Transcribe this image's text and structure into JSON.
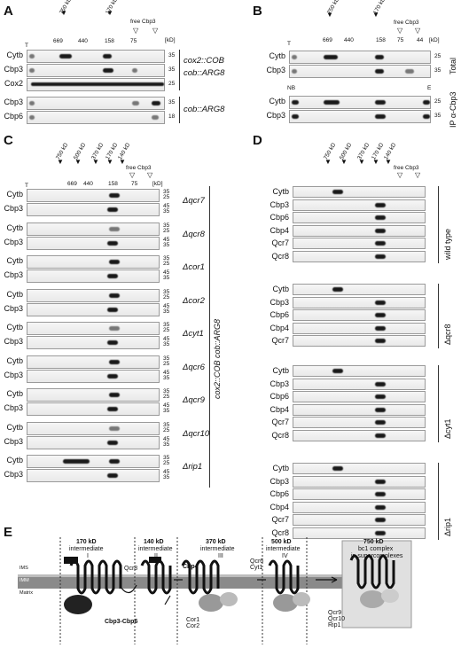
{
  "panels": {
    "A": {
      "label": "A",
      "markers": [
        "750 kD",
        "170 kD",
        "free Cbp3"
      ],
      "size_marks": [
        "669",
        "440",
        "158",
        "75"
      ],
      "unit": "[kD]",
      "t_label": "T",
      "rows": [
        {
          "name": "Cytb",
          "kd": "35"
        },
        {
          "name": "Cbp3",
          "kd": "35"
        },
        {
          "name": "Cox2",
          "kd": "25"
        },
        {
          "name": "Cbp3",
          "kd": "35"
        },
        {
          "name": "Cbp6",
          "kd": "18"
        }
      ],
      "genotype1": "cox2::COB",
      "genotype1b": "cob::ARG8",
      "genotype2": "cob::ARG8"
    },
    "B": {
      "label": "B",
      "markers": [
        "750 kD",
        "170 kD",
        "free Cbp3"
      ],
      "size_marks": [
        "669",
        "440",
        "158",
        "75",
        "44"
      ],
      "unit": "[kD]",
      "t_label": "T",
      "nb_label": "NB",
      "e_label": "E",
      "rows": [
        {
          "name": "Cytb",
          "kd": "25"
        },
        {
          "name": "Cbp3",
          "kd": "35"
        },
        {
          "name": "Cytb",
          "kd": "25"
        },
        {
          "name": "Cbp3",
          "kd": "35"
        }
      ],
      "side1": "Total",
      "side2": "IP α-Cbp3"
    },
    "C": {
      "label": "C",
      "markers": [
        "750 kD",
        "500 kD",
        "370 kD",
        "170 kD",
        "140 kD",
        "free Cbp3"
      ],
      "size_marks": [
        "669",
        "440",
        "158",
        "75"
      ],
      "unit": "[kD]",
      "t_label": "T",
      "groups": [
        {
          "mutant": "Δqcr7"
        },
        {
          "mutant": "Δqcr8"
        },
        {
          "mutant": "Δcor1"
        },
        {
          "mutant": "Δcor2"
        },
        {
          "mutant": "Δcyt1"
        },
        {
          "mutant": "Δqcr6"
        },
        {
          "mutant": "Δqcr9"
        },
        {
          "mutant": "Δqcr10"
        },
        {
          "mutant": "Δrip1"
        }
      ],
      "row_names": [
        "Cytb",
        "Cbp3"
      ],
      "kd_values": [
        "35",
        "25",
        "45",
        "35"
      ],
      "genotype": "cox2::COB cob::ARG8"
    },
    "D": {
      "label": "D",
      "markers": [
        "750 kD",
        "500 kD",
        "370 kD",
        "170 kD",
        "140 kD",
        "free Cbp3"
      ],
      "size_marks": [
        "669",
        "440",
        "158",
        "75"
      ],
      "unit": "[kD]",
      "t_label": "T",
      "wt": {
        "label": "wild type",
        "rows": [
          "Cytb",
          "Cbp3",
          "Cbp6",
          "Cbp4",
          "Qcr7",
          "Qcr8"
        ],
        "kd": [
          "35",
          "25",
          "45",
          "35",
          "18",
          "14",
          "14",
          "18",
          "14"
        ]
      },
      "qcr8": {
        "label": "Δqcr8",
        "rows": [
          "Cytb",
          "Cbp3",
          "Cbp6",
          "Cbp4",
          "Qcr7"
        ]
      },
      "cyt1": {
        "label": "Δcyt1",
        "rows": [
          "Cytb",
          "Cbp3",
          "Cbp6",
          "Cbp4",
          "Qcr7",
          "Qcr8"
        ]
      },
      "rip1": {
        "label": "Δrip1",
        "rows": [
          "Cytb",
          "Cbp3",
          "Cbp6",
          "Cbp4",
          "Qcr7",
          "Qcr8"
        ]
      }
    },
    "E": {
      "label": "E",
      "stages": [
        {
          "title": "170 kD",
          "sub": "intermediate",
          "roman": "I"
        },
        {
          "title": "140 kD",
          "sub": "intermediate",
          "roman": "II"
        },
        {
          "title": "370 kD",
          "sub": "intermediate",
          "roman": "III"
        },
        {
          "title": "500 kD",
          "sub": "intermediate",
          "roman": "IV"
        },
        {
          "title": "750 kD",
          "sub": "bc1 complex",
          "roman": "in supercomplexes"
        }
      ],
      "membrane": [
        "IMS",
        "IMM",
        "Matrix"
      ],
      "factors": {
        "qcr8": "Qcr8",
        "cbp3cbp6": "Cbp3-Cbp6",
        "cbp4": "Cbp4",
        "cor": "Cor1\nCor2",
        "qcr6cyt1": "Qcr6\nCyt1",
        "late": "Qcr9\nQcr10\nRip1"
      }
    }
  }
}
